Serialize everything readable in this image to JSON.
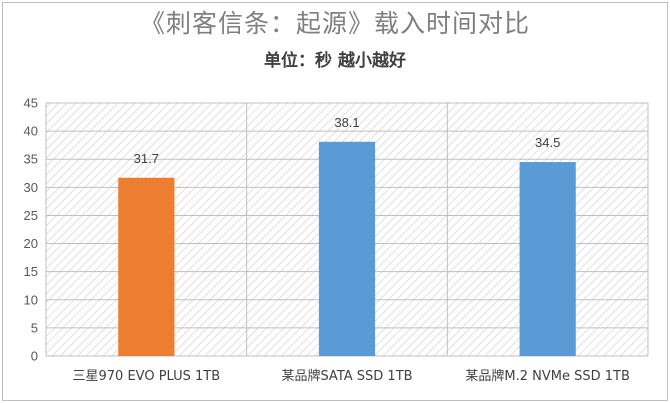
{
  "chart_data": {
    "type": "bar",
    "title": "《刺客信条：起源》载入时间对比",
    "subtitle": "单位：秒 越小越好",
    "categories": [
      "三星970 EVO PLUS 1TB",
      "某品牌SATA SSD 1TB",
      "某品牌M.2 NVMe SSD 1TB"
    ],
    "values": [
      31.7,
      38.1,
      34.5
    ],
    "data_labels": [
      "31.7",
      "38.1",
      "34.5"
    ],
    "bar_colors": [
      "#ed7d31",
      "#5b9bd5",
      "#5b9bd5"
    ],
    "ylim": [
      0,
      45
    ],
    "yticks": [
      0,
      5,
      10,
      15,
      20,
      25,
      30,
      35,
      40,
      45
    ],
    "grid": true,
    "legend": "none"
  }
}
